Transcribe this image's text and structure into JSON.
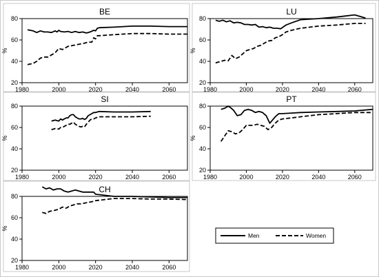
{
  "colors": {
    "line": "#000000",
    "background": "#ffffff",
    "panel_border": "#c8c8c8"
  },
  "legend": {
    "items": [
      "Men",
      "Women"
    ],
    "placement": "bottom-right"
  },
  "chart_data": [
    {
      "type": "line",
      "title": "BE",
      "ylabel": "%",
      "xlim": [
        1980,
        2070
      ],
      "ylim": [
        20,
        80
      ],
      "xticks": [
        1980,
        2000,
        2020,
        2040,
        2060
      ],
      "yticks": [
        20,
        40,
        60,
        80
      ],
      "series": [
        {
          "name": "Men",
          "style": "solid",
          "x": [
            1983,
            1986,
            1988,
            1990,
            1992,
            1994,
            1996,
            1998,
            1999,
            2000,
            2001,
            2003,
            2005,
            2007,
            2009,
            2011,
            2013,
            2015,
            2017,
            2019,
            2020,
            2021,
            2022,
            2030,
            2040,
            2050,
            2060,
            2070
          ],
          "y": [
            69.5,
            68.5,
            67,
            68.5,
            67.5,
            67.5,
            67,
            68.5,
            67.5,
            69,
            68,
            67.5,
            68,
            67,
            68,
            67,
            67.5,
            66.5,
            67.5,
            69,
            68.5,
            71,
            71.5,
            72,
            73,
            73,
            72.5,
            72.5
          ]
        },
        {
          "name": "Women",
          "style": "dash",
          "x": [
            1983,
            1986,
            1988,
            1990,
            1992,
            1994,
            1996,
            1998,
            2000,
            2002,
            2005,
            2008,
            2011,
            2014,
            2016,
            2018,
            2019,
            2020,
            2021,
            2022,
            2030,
            2040,
            2050,
            2060,
            2070
          ],
          "y": [
            37,
            38,
            40,
            43,
            44,
            44,
            46,
            48,
            52,
            51,
            54,
            55,
            56,
            57,
            58,
            58,
            62,
            61,
            64,
            64,
            65,
            66,
            66,
            65.5,
            65.5
          ]
        }
      ]
    },
    {
      "type": "line",
      "title": "LU",
      "ylabel": "%",
      "xlim": [
        1980,
        2070
      ],
      "ylim": [
        20,
        80
      ],
      "xticks": [
        1980,
        2000,
        2020,
        2040,
        2060
      ],
      "yticks": [
        20,
        40,
        60,
        80
      ],
      "series": [
        {
          "name": "Men",
          "style": "solid",
          "x": [
            1983,
            1985,
            1987,
            1989,
            1991,
            1993,
            1995,
            1997,
            1999,
            2001,
            2003,
            2005,
            2007,
            2009,
            2011,
            2013,
            2015,
            2017,
            2019,
            2022,
            2025,
            2030,
            2040,
            2050,
            2060,
            2063,
            2066
          ],
          "y": [
            78.5,
            77.5,
            78.5,
            77,
            78,
            76,
            76.5,
            76,
            74.5,
            74.5,
            74,
            74.5,
            72,
            72.5,
            71.5,
            72,
            71,
            71,
            70.5,
            74,
            76,
            79,
            80,
            81.5,
            83.5,
            82,
            80.5
          ]
        },
        {
          "name": "Women",
          "style": "dash",
          "x": [
            1983,
            1986,
            1988,
            1990,
            1992,
            1994,
            1996,
            1998,
            2000,
            2002,
            2004,
            2006,
            2008,
            2010,
            2012,
            2014,
            2016,
            2018,
            2020,
            2022,
            2025,
            2030,
            2040,
            2050,
            2060,
            2066
          ],
          "y": [
            38.5,
            40,
            41,
            40.5,
            45.5,
            42.5,
            44,
            47,
            50,
            51,
            52,
            54,
            55,
            57,
            59,
            59.5,
            62,
            63,
            65,
            67.5,
            69,
            71,
            73,
            74,
            75.5,
            75.5
          ]
        }
      ]
    },
    {
      "type": "line",
      "title": "SI",
      "ylabel": "%",
      "xlim": [
        1980,
        2070
      ],
      "ylim": [
        20,
        80
      ],
      "xticks": [
        1980,
        2000,
        2020,
        2040,
        2060
      ],
      "yticks": [
        20,
        40,
        60,
        80
      ],
      "series": [
        {
          "name": "Men",
          "style": "solid",
          "x": [
            1996,
            1998,
            2000,
            2001,
            2002,
            2003,
            2004,
            2005,
            2006,
            2007,
            2008,
            2009,
            2010,
            2011,
            2012,
            2013,
            2014,
            2015,
            2016,
            2017,
            2018,
            2019,
            2020,
            2022,
            2030,
            2040,
            2050
          ],
          "y": [
            66,
            67,
            66,
            68,
            67,
            68,
            69,
            69,
            71,
            72,
            72,
            70,
            69,
            68,
            68,
            68.5,
            67.5,
            68.5,
            71,
            72,
            73,
            74,
            74,
            75,
            74.5,
            74.5,
            75
          ]
        },
        {
          "name": "Women",
          "style": "dash",
          "x": [
            1996,
            1998,
            2000,
            2001,
            2002,
            2003,
            2004,
            2005,
            2006,
            2007,
            2008,
            2009,
            2010,
            2011,
            2012,
            2013,
            2014,
            2015,
            2016,
            2017,
            2018,
            2019,
            2020,
            2022,
            2030,
            2040,
            2050
          ],
          "y": [
            58,
            59,
            58.5,
            60,
            60,
            61,
            62,
            63,
            63,
            64,
            65,
            63,
            62,
            61,
            60.5,
            61,
            60.5,
            63,
            65,
            67,
            68,
            68,
            69,
            70,
            70,
            70,
            70.5
          ]
        }
      ]
    },
    {
      "type": "line",
      "title": "PT",
      "ylabel": "%",
      "xlim": [
        1980,
        2070
      ],
      "ylim": [
        20,
        80
      ],
      "xticks": [
        1980,
        2000,
        2020,
        2040,
        2060
      ],
      "yticks": [
        20,
        40,
        60,
        80
      ],
      "series": [
        {
          "name": "Men",
          "style": "solid",
          "x": [
            1986,
            1988,
            1990,
            1991,
            1993,
            1995,
            1997,
            1999,
            2001,
            2003,
            2005,
            2007,
            2009,
            2011,
            2013,
            2014,
            2016,
            2018,
            2020,
            2025,
            2030,
            2040,
            2050,
            2060,
            2070
          ],
          "y": [
            77,
            78,
            80,
            79,
            76,
            71,
            72,
            76,
            77,
            76,
            74,
            75,
            74,
            71,
            64,
            66,
            70,
            73,
            73,
            73.5,
            74,
            74.5,
            75,
            75.5,
            77
          ]
        },
        {
          "name": "Women",
          "style": "dash",
          "x": [
            1986,
            1988,
            1990,
            1992,
            1994,
            1996,
            1998,
            2000,
            2002,
            2004,
            2006,
            2008,
            2010,
            2012,
            2013,
            2014,
            2016,
            2018,
            2020,
            2025,
            2030,
            2040,
            2050,
            2060,
            2070
          ],
          "y": [
            47,
            52,
            57,
            56,
            54,
            55,
            58,
            62,
            62,
            62,
            63,
            62,
            61,
            58,
            59,
            60,
            64,
            67,
            68,
            69,
            70,
            72,
            73,
            74,
            74
          ]
        }
      ]
    },
    {
      "type": "line",
      "title": "CH",
      "ylabel": "%",
      "xlim": [
        1980,
        2070
      ],
      "ylim": [
        20,
        80
      ],
      "xticks": [
        1980,
        2000,
        2020,
        2040,
        2060
      ],
      "yticks": [
        20,
        40,
        60,
        80
      ],
      "series": [
        {
          "name": "Men",
          "style": "solid",
          "x": [
            1991,
            1993,
            1995,
            1997,
            1999,
            2001,
            2003,
            2005,
            2007,
            2009,
            2011,
            2013,
            2015,
            2017,
            2019,
            2020,
            2025,
            2030,
            2040,
            2050,
            2060,
            2070
          ],
          "y": [
            89,
            87,
            88,
            86,
            87,
            87,
            85,
            84,
            85,
            86,
            85,
            84,
            84,
            84,
            84,
            82,
            81,
            80,
            80,
            79.5,
            79,
            79
          ]
        },
        {
          "name": "Women",
          "style": "dash",
          "x": [
            1991,
            1993,
            1995,
            1998,
            2000,
            2002,
            2004,
            2006,
            2008,
            2010,
            2012,
            2015,
            2018,
            2020,
            2025,
            2030,
            2040,
            2050,
            2060,
            2070
          ],
          "y": [
            65,
            64,
            66,
            67,
            68,
            70,
            69,
            71,
            72,
            73,
            73,
            74,
            75,
            76,
            77,
            78,
            78,
            77.5,
            77.5,
            77
          ]
        }
      ]
    }
  ]
}
